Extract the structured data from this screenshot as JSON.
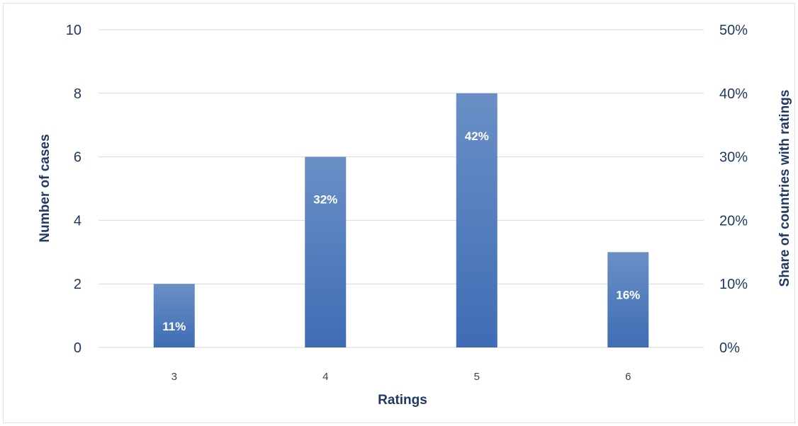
{
  "chart_data": {
    "type": "bar",
    "categories": [
      "3",
      "4",
      "5",
      "6"
    ],
    "values": [
      2,
      6,
      8,
      3
    ],
    "data_labels": [
      "11%",
      "32%",
      "42%",
      "16%"
    ],
    "title": "",
    "xlabel": "Ratings",
    "ylabel": "Number of cases",
    "y2label": "Share of countries with ratings",
    "ylim": [
      0,
      10
    ],
    "yticks": [
      "0",
      "2",
      "4",
      "6",
      "8",
      "10"
    ],
    "y2lim": [
      0,
      50
    ],
    "y2ticks": [
      "0%",
      "10%",
      "20%",
      "30%",
      "40%",
      "50%"
    ],
    "grid": true,
    "legend": "none",
    "colors": {
      "bar_top": "#6a8fc6",
      "bar_bottom": "#3e6db5",
      "text": "#1f3864"
    }
  }
}
